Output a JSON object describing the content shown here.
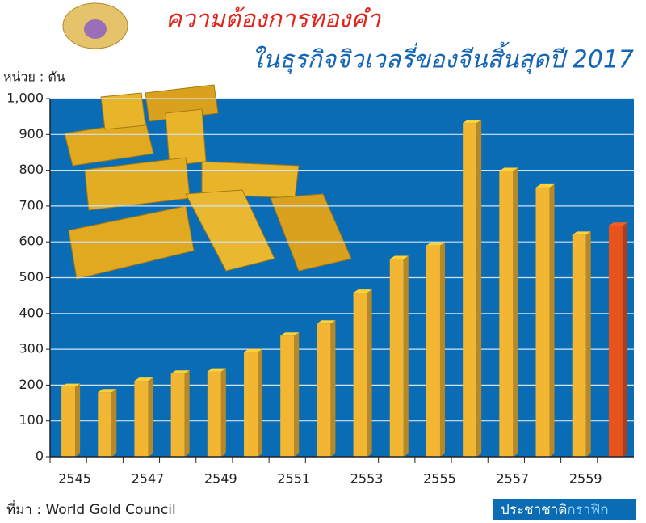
{
  "chart_data": {
    "type": "bar",
    "title": "ความต้องการทองคำ",
    "subtitle": "ในธุรกิจจิวเวลรี่ของจีนสิ้นสุดปี 2017",
    "unit_label": "หน่วย : ตัน",
    "source": "ที่มา : World Gold Council",
    "credit": [
      "ประชาชาติ",
      "กราฟิก"
    ],
    "categories": [
      "2545",
      null,
      "2547",
      null,
      "2549",
      null,
      "2551",
      null,
      "2553",
      null,
      "2555",
      null,
      "2557",
      null,
      "2559",
      null
    ],
    "values": [
      195,
      180,
      212,
      232,
      238,
      292,
      338,
      372,
      458,
      552,
      590,
      932,
      798,
      752,
      620,
      645
    ],
    "colors": [
      "#f2b632",
      "#f2b632",
      "#f2b632",
      "#f2b632",
      "#f2b632",
      "#f2b632",
      "#f2b632",
      "#f2b632",
      "#f2b632",
      "#f2b632",
      "#f2b632",
      "#f2b632",
      "#f2b632",
      "#f2b632",
      "#f2b632",
      "#e8521c"
    ],
    "plot_background": "#0b6cb6",
    "ylim": [
      0,
      1000
    ],
    "yticks": [
      0,
      100,
      200,
      300,
      400,
      500,
      600,
      700,
      800,
      900,
      {
        "value": 1000,
        "label": "1,000"
      }
    ],
    "grid": true
  }
}
